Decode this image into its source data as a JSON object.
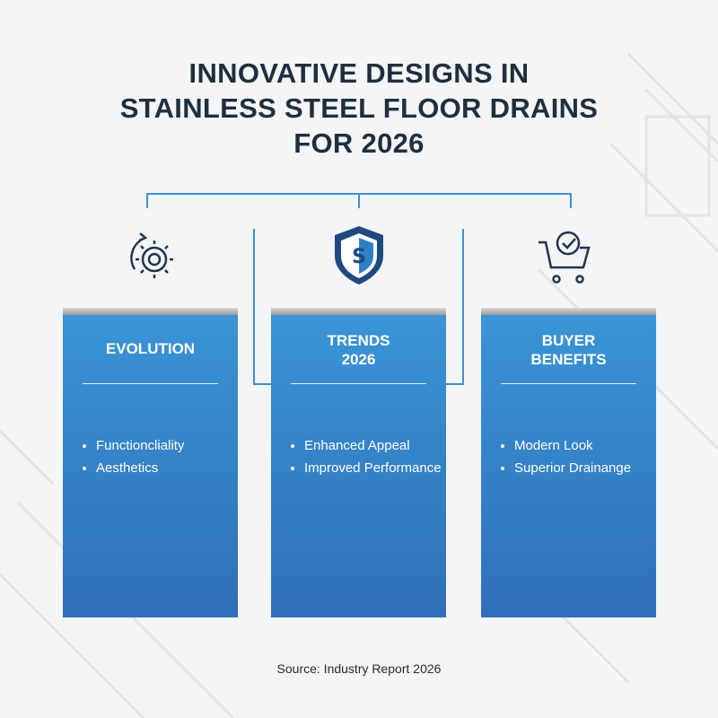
{
  "title": {
    "lines": [
      "INNOVATIVE DESIGNS IN",
      "STAINLESS STEEL FLOOR DRAINS",
      "FOR 2026"
    ]
  },
  "columns": [
    {
      "heading": [
        "EVOLUTION"
      ],
      "bullets": [
        "Functioncliality",
        "Aesthetics"
      ]
    },
    {
      "heading": [
        "TRENDS",
        "2026"
      ],
      "bullets": [
        "Enhanced Appeal",
        "Improved Performance"
      ]
    },
    {
      "heading": [
        "BUYER",
        "BENEFITS"
      ],
      "bullets": [
        "Modern Look",
        "Superior Drainange"
      ]
    }
  ],
  "source": "Source: Industry Report 2026"
}
